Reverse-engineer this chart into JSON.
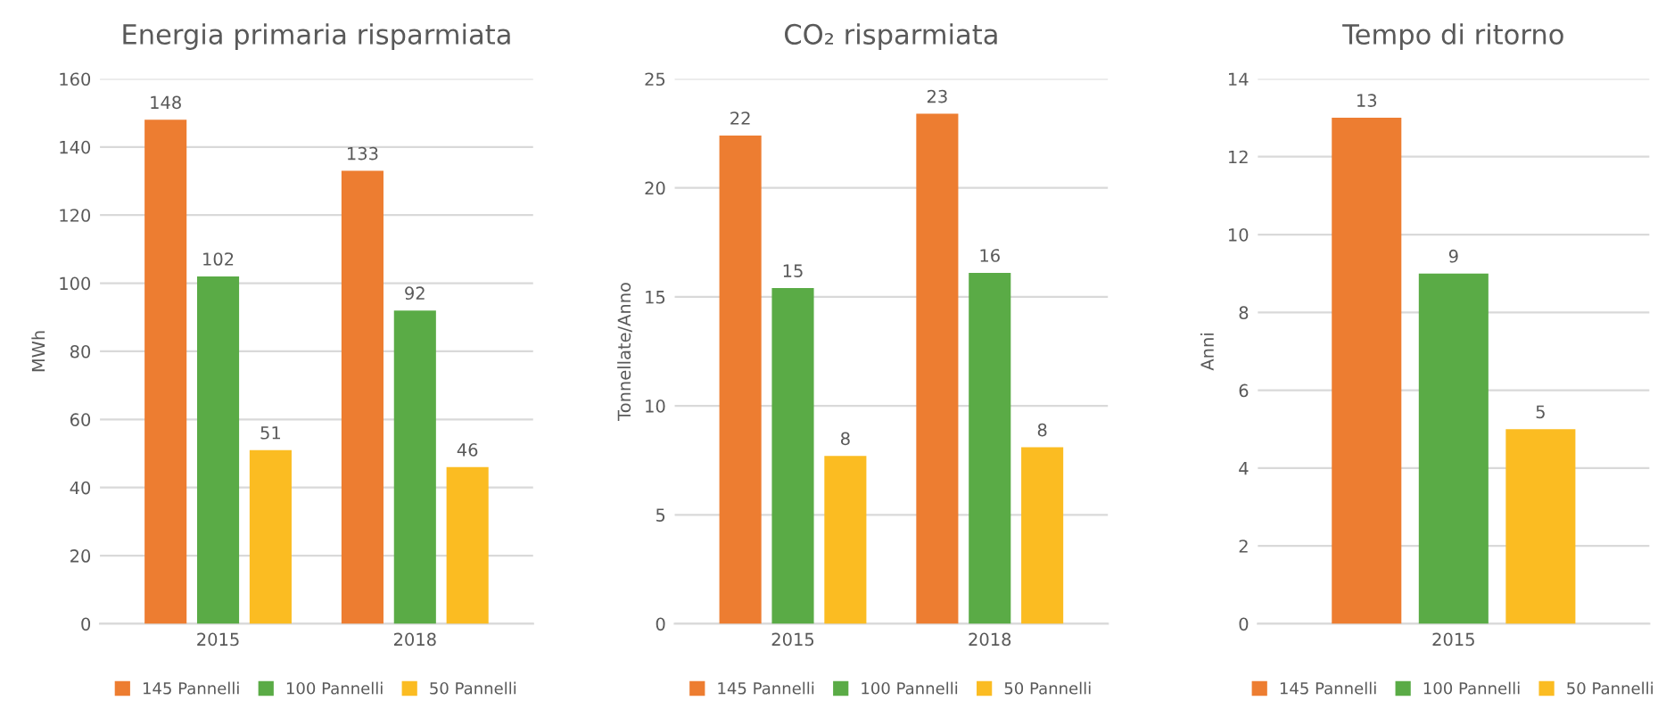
{
  "chart_data": [
    {
      "type": "bar",
      "title": "Energia primaria risparmiata",
      "ylabel": "MWh",
      "categories": [
        "2015",
        "2018"
      ],
      "series": [
        {
          "name": "145 Pannelli",
          "color": "#ed7d31",
          "values": [
            148,
            133
          ]
        },
        {
          "name": "100 Pannelli",
          "color": "#5aab46",
          "values": [
            102,
            92
          ]
        },
        {
          "name": "50 Pannelli",
          "color": "#fbbc22",
          "values": [
            51,
            46
          ]
        }
      ],
      "ylim": [
        0,
        160
      ],
      "yticks": [
        0,
        20,
        40,
        60,
        80,
        100,
        120,
        140,
        160
      ],
      "grid": "y",
      "legend": "bottom",
      "data_labels": true
    },
    {
      "type": "bar",
      "title": "CO₂ risparmiata",
      "ylabel": "Tonnellate/Anno",
      "categories": [
        "2015",
        "2018"
      ],
      "series": [
        {
          "name": "145 Pannelli",
          "color": "#ed7d31",
          "values": [
            22.4,
            23.4
          ],
          "value_labels": [
            "22",
            "23"
          ]
        },
        {
          "name": "100 Pannelli",
          "color": "#5aab46",
          "values": [
            15.4,
            16.1
          ],
          "value_labels": [
            "15",
            "16"
          ]
        },
        {
          "name": "50 Pannelli",
          "color": "#fbbc22",
          "values": [
            7.7,
            8.1
          ],
          "value_labels": [
            "8",
            "8"
          ]
        }
      ],
      "ylim": [
        0,
        25
      ],
      "yticks": [
        0,
        5,
        10,
        15,
        20,
        25
      ],
      "grid": "y",
      "legend": "bottom"
    },
    {
      "type": "bar",
      "title": "Tempo di ritorno",
      "ylabel": "Anni",
      "categories": [
        "2015"
      ],
      "series": [
        {
          "name": "145 Pannelli",
          "color": "#ed7d31",
          "values": [
            13
          ]
        },
        {
          "name": "100 Pannelli",
          "color": "#5aab46",
          "values": [
            9
          ]
        },
        {
          "name": "50 Pannelli",
          "color": "#fbbc22",
          "values": [
            5
          ]
        }
      ],
      "ylim": [
        0,
        14
      ],
      "yticks": [
        0,
        2,
        4,
        6,
        8,
        10,
        12,
        14
      ],
      "grid": "y",
      "legend": "bottom",
      "data_labels": true
    }
  ]
}
